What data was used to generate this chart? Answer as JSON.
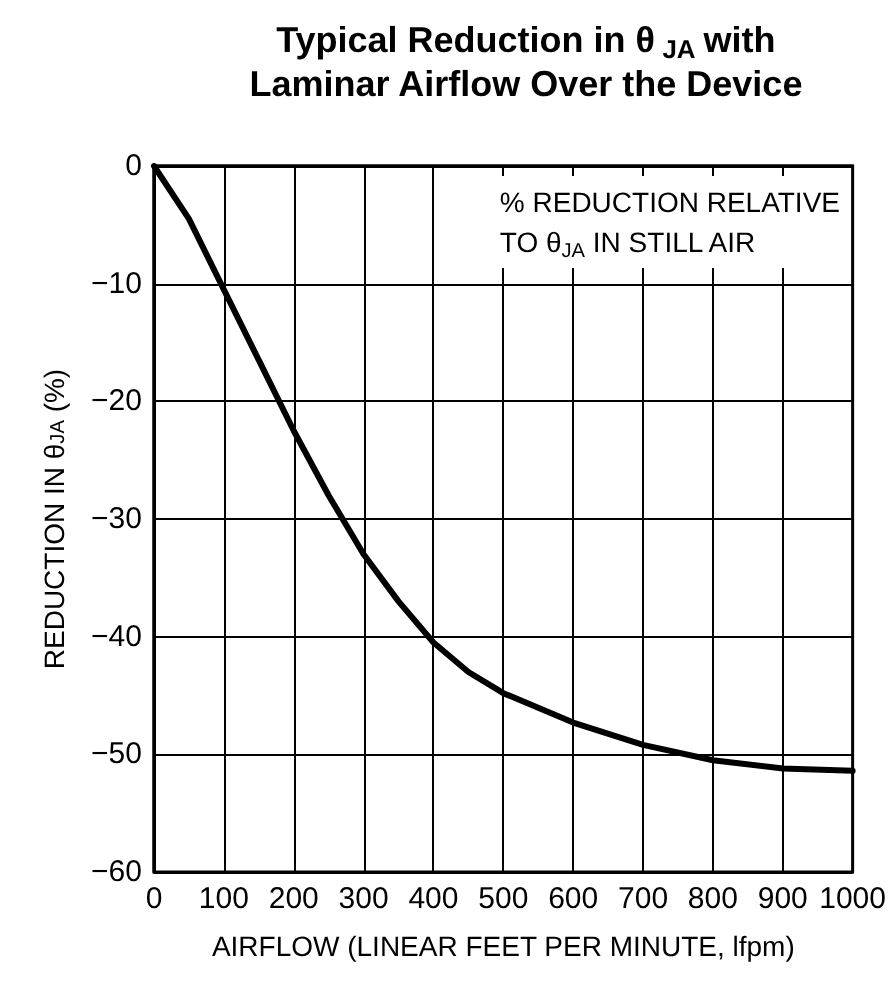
{
  "chart_data": {
    "type": "line",
    "title": "Typical Reduction in θ$_{JA}$ with Laminar Airflow Over the Device",
    "xlabel": "AIRFLOW (LINEAR FEET PER MINUTE, lfpm)",
    "ylabel": "REDUCTION IN θ$_{JA}$ (%)",
    "annotations": [
      "% REDUCTION RELATIVE\nTO θ$_{JA}$ IN STILL AIR"
    ],
    "x": [
      0,
      50,
      100,
      150,
      200,
      250,
      300,
      350,
      400,
      450,
      500,
      600,
      700,
      800,
      900,
      1000
    ],
    "series": [
      {
        "color": "#000000",
        "values": [
          0,
          -4.5,
          -10.5,
          -16.5,
          -22.5,
          -28,
          -33,
          -37,
          -40.5,
          -43,
          -44.8,
          -47.3,
          -49.2,
          -50.5,
          -51.2,
          -51.4
        ]
      }
    ],
    "xlim": [
      0,
      1000
    ],
    "xticks": [
      0,
      100,
      200,
      300,
      400,
      500,
      600,
      700,
      800,
      900,
      1000
    ],
    "ylim": [
      -60,
      0
    ],
    "yticks": [
      {
        "value": -60,
        "label": "−60"
      },
      {
        "value": -50,
        "label": "−50"
      },
      {
        "value": -40,
        "label": "−40"
      },
      {
        "value": -30,
        "label": "−30"
      },
      {
        "value": -20,
        "label": "−20"
      },
      {
        "value": -10,
        "label": "−10"
      },
      0
    ],
    "grid": true,
    "marker": "none",
    "line_style": "solid"
  }
}
